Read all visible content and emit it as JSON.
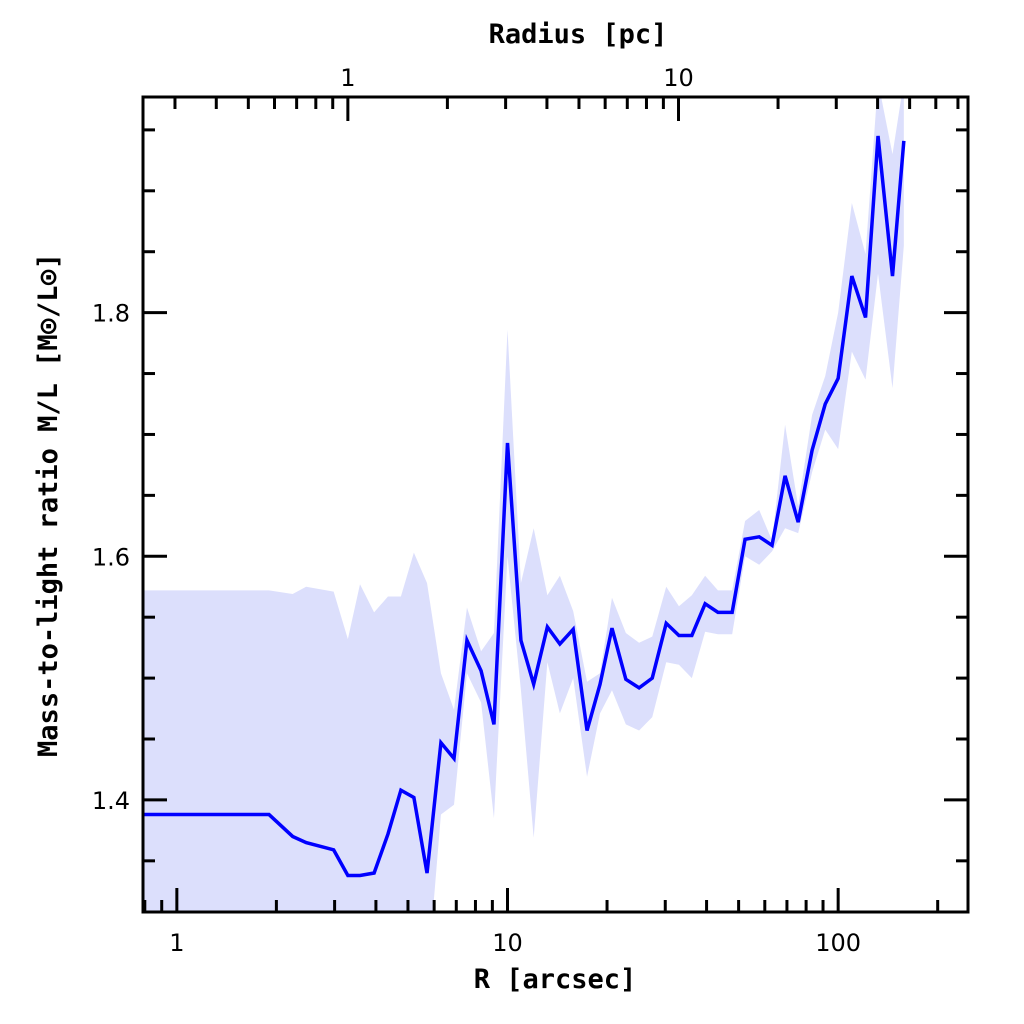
{
  "chart_data": {
    "type": "line",
    "title": "",
    "xlabel": "R [arcsec]",
    "ylabel": "Mass-to-light ratio M/L [M⊙/L⊙]",
    "top_xlabel": "Radius [pc]",
    "xscale": "log",
    "xlim": [
      0.79,
      247
    ],
    "ylim": [
      1.308,
      1.977
    ],
    "arcsec_per_pc": 3.29,
    "x_tick_labels": [
      "1",
      "10",
      "100"
    ],
    "x_ticks": [
      1,
      10,
      100
    ],
    "top_tick_labels": [
      "1",
      "10"
    ],
    "top_ticks_pc": [
      1,
      10
    ],
    "y_tick_labels": [
      "1.4",
      "1.6",
      "1.8"
    ],
    "y_ticks": [
      1.4,
      1.6,
      1.8
    ],
    "y_minor_step": 0.05,
    "grid": false,
    "line_color": "#0000ff",
    "band_color": "#dcdffc",
    "x": [
      0.79,
      1.9,
      2.24,
      2.46,
      2.98,
      3.29,
      3.58,
      3.95,
      4.35,
      4.76,
      5.21,
      5.71,
      6.29,
      6.89,
      7.54,
      8.32,
      9.1,
      10.0,
      10.98,
      12.0,
      13.2,
      14.4,
      15.8,
      17.4,
      19.05,
      20.7,
      22.8,
      25.0,
      27.4,
      30.2,
      33.0,
      36.1,
      39.6,
      43.3,
      47.8,
      52.3,
      57.7,
      63.1,
      69.1,
      75.7,
      83.4,
      91.4,
      100,
      110,
      121,
      132,
      146,
      158
    ],
    "series": [
      {
        "name": "M/L",
        "values": [
          1.388,
          1.388,
          1.37,
          1.365,
          1.359,
          1.338,
          1.338,
          1.34,
          1.372,
          1.408,
          1.402,
          1.34,
          1.447,
          1.434,
          1.531,
          1.506,
          1.462,
          1.693,
          1.531,
          1.495,
          1.542,
          1.528,
          1.54,
          1.457,
          1.495,
          1.541,
          1.499,
          1.492,
          1.5,
          1.545,
          1.535,
          1.535,
          1.561,
          1.554,
          1.554,
          1.614,
          1.616,
          1.609,
          1.666,
          1.628,
          1.687,
          1.725,
          1.746,
          1.83,
          1.796,
          1.945,
          1.83,
          1.941
        ],
        "upper": [
          1.572,
          1.572,
          1.569,
          1.575,
          1.571,
          1.532,
          1.577,
          1.554,
          1.567,
          1.567,
          1.603,
          1.578,
          1.504,
          1.474,
          1.558,
          1.522,
          1.537,
          1.786,
          1.578,
          1.623,
          1.568,
          1.584,
          1.555,
          1.497,
          1.504,
          1.566,
          1.537,
          1.529,
          1.534,
          1.575,
          1.559,
          1.568,
          1.584,
          1.572,
          1.572,
          1.629,
          1.638,
          1.613,
          1.708,
          1.641,
          1.716,
          1.748,
          1.8,
          1.89,
          1.848,
          1.99,
          1.93,
          1.99
        ],
        "lower": [
          1.25,
          1.25,
          1.25,
          1.25,
          1.25,
          1.25,
          1.25,
          1.25,
          1.25,
          1.25,
          1.25,
          1.25,
          1.388,
          1.396,
          1.504,
          1.48,
          1.385,
          1.6,
          1.49,
          1.369,
          1.513,
          1.471,
          1.5,
          1.419,
          1.471,
          1.49,
          1.462,
          1.457,
          1.468,
          1.513,
          1.511,
          1.5,
          1.538,
          1.536,
          1.536,
          1.6,
          1.593,
          1.604,
          1.623,
          1.619,
          1.669,
          1.704,
          1.688,
          1.768,
          1.745,
          1.832,
          1.738,
          1.855
        ]
      }
    ]
  }
}
